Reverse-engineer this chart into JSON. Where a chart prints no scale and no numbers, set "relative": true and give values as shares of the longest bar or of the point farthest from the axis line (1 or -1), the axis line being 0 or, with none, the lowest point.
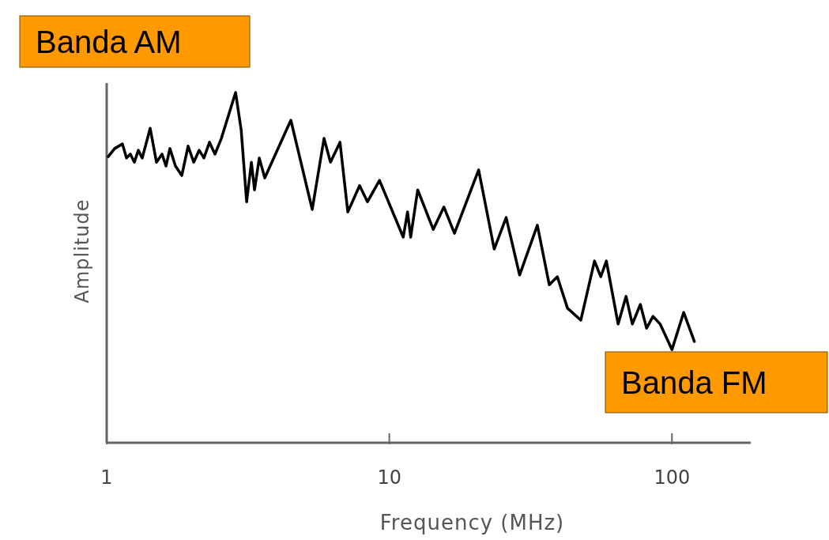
{
  "chart_data": {
    "type": "line",
    "relative": true,
    "log": "x",
    "xlabel": "Frequency (MHz)",
    "ylabel": "Amplitude",
    "xlim": [
      1,
      190
    ],
    "xticks": [
      1,
      10,
      100
    ],
    "grid": false,
    "line_style": "solid",
    "annotations": [
      "Banda AM",
      "Banda FM"
    ],
    "series": [
      {
        "color": "#000000",
        "x": [
          1.013,
          1.067,
          1.137,
          1.175,
          1.213,
          1.253,
          1.294,
          1.336,
          1.425,
          1.5,
          1.57,
          1.621,
          1.674,
          1.751,
          1.844,
          1.941,
          2.032,
          2.125,
          2.208,
          2.311,
          2.416,
          2.545,
          2.858,
          2.992,
          3.127,
          3.251,
          3.334,
          3.467,
          3.625,
          4.483,
          5.336,
          5.875,
          6.19,
          6.69,
          7.13,
          7.85,
          8.37,
          9.23,
          11.2,
          11.6,
          11.9,
          12.6,
          14.3,
          15.6,
          17.0,
          20.7,
          23.5,
          25.9,
          28.9,
          33.4,
          36.8,
          39.3,
          42.7,
          47.6,
          53.2,
          56.0,
          58.6,
          64.5,
          68.8,
          72.4,
          77.3,
          81.3,
          85.7,
          90.8,
          100,
          110,
          120
        ],
        "values": [
          0.817,
          0.84,
          0.853,
          0.813,
          0.824,
          0.801,
          0.835,
          0.813,
          0.898,
          0.801,
          0.824,
          0.79,
          0.84,
          0.79,
          0.763,
          0.847,
          0.801,
          0.835,
          0.813,
          0.858,
          0.824,
          0.869,
          1,
          0.892,
          0.688,
          0.801,
          0.722,
          0.813,
          0.756,
          0.921,
          0.666,
          0.869,
          0.801,
          0.858,
          0.659,
          0.734,
          0.688,
          0.749,
          0.587,
          0.659,
          0.587,
          0.722,
          0.609,
          0.673,
          0.598,
          0.779,
          0.553,
          0.643,
          0.479,
          0.621,
          0.451,
          0.474,
          0.384,
          0.35,
          0.519,
          0.474,
          0.519,
          0.339,
          0.418,
          0.339,
          0.395,
          0.327,
          0.361,
          0.339,
          0.266,
          0.372,
          0.289
        ]
      }
    ]
  }
}
